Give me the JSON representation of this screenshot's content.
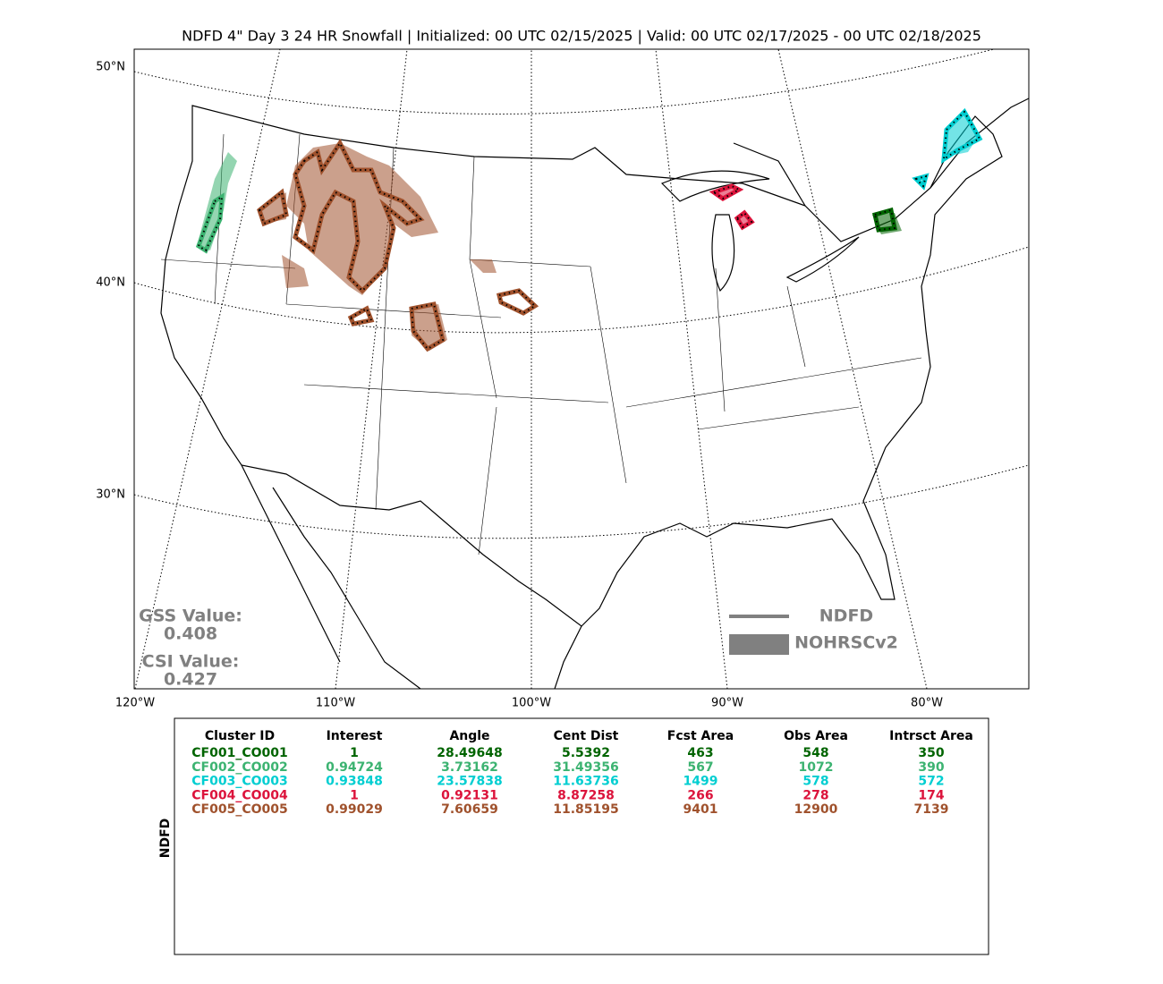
{
  "title": "NDFD 4\" Day 3 24 HR Snowfall | Initialized: 00 UTC 02/15/2025 | Valid: 00 UTC 02/17/2025 - 00 UTC 02/18/2025",
  "map": {
    "lat_labels": [
      "50°N",
      "40°N",
      "30°N"
    ],
    "lon_labels": [
      "120°W",
      "110°W",
      "100°W",
      "90°W",
      "80°W"
    ],
    "scores": [
      {
        "label": "GSS Value:",
        "value": 0.408
      },
      {
        "label": "CSI Value:",
        "value": 0.427
      }
    ],
    "legend": [
      "NDFD",
      "NOHRSCv2"
    ]
  },
  "table": {
    "side_label": "NDFD",
    "header": [
      "Cluster ID",
      "Interest",
      "Angle",
      "Cent Dist",
      "Fcst Area",
      "Obs Area",
      "Intrsct Area"
    ],
    "row_colors": [
      "#006400",
      "#3cb371",
      "#00ced1",
      "#dc143c",
      "#a0522d"
    ],
    "rows": [
      [
        "CF001_CO001",
        1,
        28.49648,
        5.5392,
        463,
        548,
        350
      ],
      [
        "CF002_CO002",
        0.94724,
        3.73162,
        31.49356,
        567,
        1072,
        390
      ],
      [
        "CF003_CO003",
        0.93848,
        23.57838,
        11.63736,
        1499,
        578,
        572
      ],
      [
        "CF004_CO004",
        1,
        0.92131,
        8.87258,
        266,
        278,
        174
      ],
      [
        "CF005_CO005",
        0.99029,
        7.60659,
        11.85195,
        9401,
        12900,
        7139
      ]
    ]
  }
}
